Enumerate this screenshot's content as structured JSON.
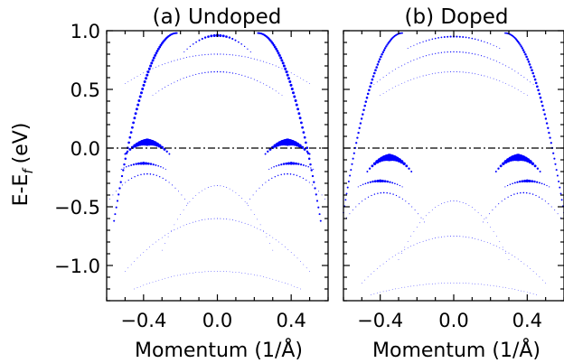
{
  "chart_data": [
    {
      "type": "scatter",
      "title": "(a) Undoped",
      "xlabel": "Momentum (1/Å)",
      "ylabel": "E-E",
      "ylabel_subscript": "f",
      "ylabel_unit": "(eV)",
      "xlim": [
        -0.6,
        0.6
      ],
      "ylim": [
        -1.3,
        1.0
      ],
      "xticks": [
        -0.4,
        0.0,
        0.4
      ],
      "xtick_labels": [
        "−0.4",
        "0.0",
        "0.4"
      ],
      "yticks": [
        1.0,
        0.5,
        0.0,
        -0.5,
        -1.0
      ],
      "ytick_labels": [
        "1.0",
        "0.5",
        "0.0",
        "−0.5",
        "−1.0"
      ],
      "fermi_level": 0.0,
      "marker_color": "#0000ff",
      "bands": [
        {
          "kind": "dispersive",
          "from": [
            -0.56,
            -0.62
          ],
          "to": [
            -0.22,
            0.98
          ],
          "weight": 0.55
        },
        {
          "kind": "dispersive",
          "from": [
            0.56,
            -0.62
          ],
          "to": [
            0.22,
            0.98
          ],
          "weight": 0.55
        },
        {
          "kind": "arc",
          "center": [
            0.0,
            0.96
          ],
          "halfwidth": 0.18,
          "depth": 0.14,
          "weight": 0.6
        },
        {
          "kind": "arc",
          "center": [
            0.0,
            0.8
          ],
          "halfwidth": 0.5,
          "depth": 0.25,
          "weight": 0.25
        },
        {
          "kind": "arc",
          "center": [
            0.0,
            0.65
          ],
          "halfwidth": 0.35,
          "depth": 0.2,
          "weight": 0.3
        },
        {
          "kind": "arc",
          "center": [
            -0.38,
            0.05
          ],
          "halfwidth": 0.12,
          "depth": 0.1,
          "weight": 1.0
        },
        {
          "kind": "arc",
          "center": [
            0.38,
            0.05
          ],
          "halfwidth": 0.12,
          "depth": 0.1,
          "weight": 1.0
        },
        {
          "kind": "arc",
          "center": [
            -0.4,
            -0.13
          ],
          "halfwidth": 0.12,
          "depth": 0.05,
          "weight": 0.6
        },
        {
          "kind": "arc",
          "center": [
            0.4,
            -0.13
          ],
          "halfwidth": 0.12,
          "depth": 0.05,
          "weight": 0.6
        },
        {
          "kind": "arc",
          "center": [
            -0.38,
            -0.22
          ],
          "halfwidth": 0.22,
          "depth": 0.25,
          "weight": 0.35
        },
        {
          "kind": "arc",
          "center": [
            0.38,
            -0.22
          ],
          "halfwidth": 0.22,
          "depth": 0.25,
          "weight": 0.35
        },
        {
          "kind": "arc",
          "center": [
            0.0,
            -0.32
          ],
          "halfwidth": 0.3,
          "depth": 0.55,
          "weight": 0.15
        },
        {
          "kind": "arc",
          "center": [
            0.0,
            -0.6
          ],
          "halfwidth": 0.5,
          "depth": 0.45,
          "weight": 0.15
        },
        {
          "kind": "arc",
          "center": [
            0.0,
            -1.05
          ],
          "halfwidth": 0.45,
          "depth": 0.15,
          "weight": 0.1
        }
      ]
    },
    {
      "type": "scatter",
      "title": "(b) Doped",
      "xlabel": "Momentum (1/Å)",
      "xlim": [
        -0.6,
        0.6
      ],
      "ylim": [
        -1.3,
        1.0
      ],
      "xticks": [
        -0.4,
        0.0,
        0.4
      ],
      "xtick_labels": [
        "−0.4",
        "0.0",
        "0.4"
      ],
      "fermi_level": 0.0,
      "marker_color": "#0000ff",
      "bands": [
        {
          "kind": "dispersive",
          "from": [
            -0.6,
            -0.55
          ],
          "to": [
            -0.28,
            0.98
          ],
          "weight": 0.5
        },
        {
          "kind": "dispersive",
          "from": [
            0.6,
            -0.55
          ],
          "to": [
            0.28,
            0.98
          ],
          "weight": 0.5
        },
        {
          "kind": "arc",
          "center": [
            0.0,
            0.95
          ],
          "halfwidth": 0.25,
          "depth": 0.1,
          "weight": 0.45
        },
        {
          "kind": "arc",
          "center": [
            0.0,
            0.82
          ],
          "halfwidth": 0.45,
          "depth": 0.3,
          "weight": 0.3
        },
        {
          "kind": "arc",
          "center": [
            0.0,
            0.65
          ],
          "halfwidth": 0.4,
          "depth": 0.2,
          "weight": 0.2
        },
        {
          "kind": "arc",
          "center": [
            -0.35,
            -0.08
          ],
          "halfwidth": 0.12,
          "depth": 0.12,
          "weight": 1.0
        },
        {
          "kind": "arc",
          "center": [
            0.35,
            -0.08
          ],
          "halfwidth": 0.12,
          "depth": 0.12,
          "weight": 1.0
        },
        {
          "kind": "arc",
          "center": [
            -0.4,
            -0.28
          ],
          "halfwidth": 0.12,
          "depth": 0.05,
          "weight": 0.6
        },
        {
          "kind": "arc",
          "center": [
            0.4,
            -0.28
          ],
          "halfwidth": 0.12,
          "depth": 0.05,
          "weight": 0.6
        },
        {
          "kind": "arc",
          "center": [
            -0.38,
            -0.38
          ],
          "halfwidth": 0.22,
          "depth": 0.25,
          "weight": 0.35
        },
        {
          "kind": "arc",
          "center": [
            0.38,
            -0.38
          ],
          "halfwidth": 0.22,
          "depth": 0.25,
          "weight": 0.35
        },
        {
          "kind": "arc",
          "center": [
            0.0,
            -0.45
          ],
          "halfwidth": 0.3,
          "depth": 0.5,
          "weight": 0.15
        },
        {
          "kind": "arc",
          "center": [
            0.0,
            -0.75
          ],
          "halfwidth": 0.5,
          "depth": 0.4,
          "weight": 0.15
        },
        {
          "kind": "arc",
          "center": [
            0.0,
            -1.15
          ],
          "halfwidth": 0.45,
          "depth": 0.1,
          "weight": 0.1
        }
      ]
    }
  ]
}
